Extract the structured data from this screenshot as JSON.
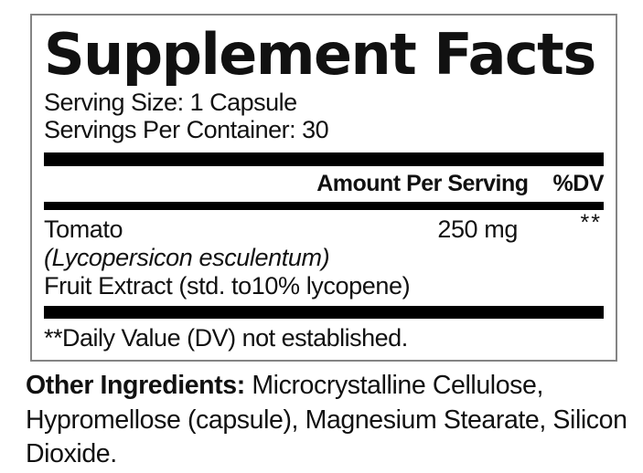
{
  "supplement_facts": {
    "title": "Supplement Facts",
    "serving_size": "Serving Size: 1 Capsule",
    "servings_per_container": "Servings Per Container: 30",
    "column_headers": {
      "amount": "Amount Per Serving",
      "daily_value": "%DV"
    },
    "ingredients": [
      {
        "name": "Tomato",
        "botanical_name": "(Lycopersicon esculentum)",
        "description": "Fruit Extract (std. to10% lycopene)",
        "amount": "250 mg",
        "daily_value": "**"
      }
    ],
    "footnote": "**Daily Value (DV) not established."
  },
  "other_ingredients": {
    "label": "Other Ingredients:",
    "list": " Microcrystalline Cellulose, Hypromellose (capsule), Magnesium Stearate, Silicon Dioxide."
  },
  "colors": {
    "text": "#111111",
    "bar": "#000000",
    "panel_border": "#848484",
    "background": "#ffffff"
  }
}
